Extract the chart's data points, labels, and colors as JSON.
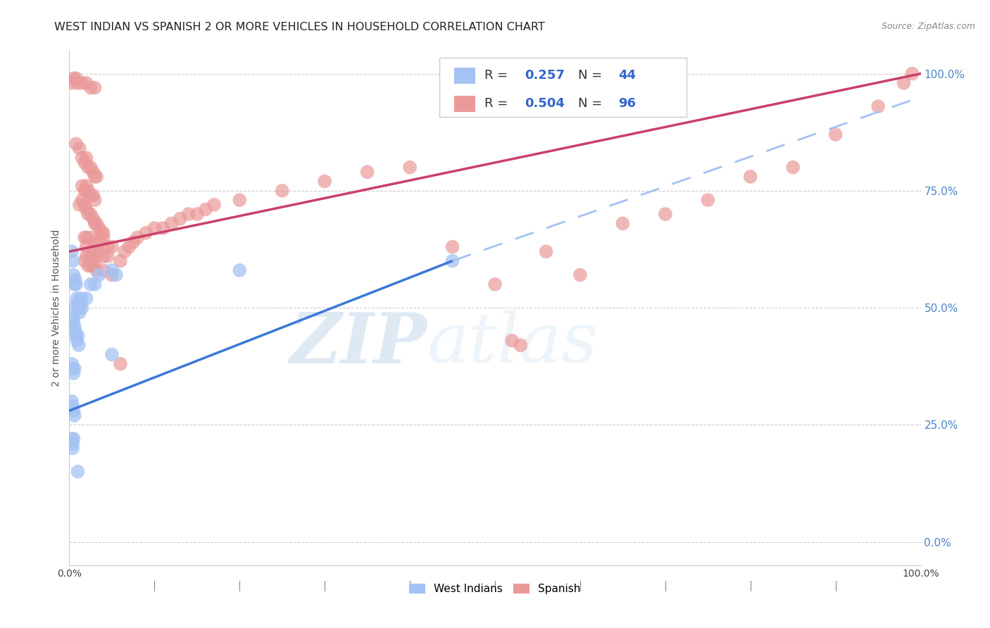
{
  "title": "WEST INDIAN VS SPANISH 2 OR MORE VEHICLES IN HOUSEHOLD CORRELATION CHART",
  "source": "Source: ZipAtlas.com",
  "ylabel_label": "2 or more Vehicles in Household",
  "watermark_zip": "ZIP",
  "watermark_atlas": "atlas",
  "blue_color": "#a4c2f4",
  "pink_color": "#ea9999",
  "blue_line_color": "#3c78d8",
  "pink_line_color": "#c9406a",
  "blue_dash_color": "#a4c2f4",
  "blue_scatter": [
    [
      0.003,
      0.62
    ],
    [
      0.004,
      0.6
    ],
    [
      0.005,
      0.57
    ],
    [
      0.006,
      0.55
    ],
    [
      0.007,
      0.56
    ],
    [
      0.008,
      0.55
    ],
    [
      0.009,
      0.52
    ],
    [
      0.01,
      0.51
    ],
    [
      0.011,
      0.5
    ],
    [
      0.012,
      0.49
    ],
    [
      0.013,
      0.51
    ],
    [
      0.014,
      0.52
    ],
    [
      0.015,
      0.5
    ],
    [
      0.003,
      0.5
    ],
    [
      0.004,
      0.48
    ],
    [
      0.005,
      0.47
    ],
    [
      0.006,
      0.46
    ],
    [
      0.007,
      0.45
    ],
    [
      0.008,
      0.44
    ],
    [
      0.009,
      0.43
    ],
    [
      0.01,
      0.44
    ],
    [
      0.011,
      0.42
    ],
    [
      0.003,
      0.38
    ],
    [
      0.004,
      0.37
    ],
    [
      0.005,
      0.36
    ],
    [
      0.006,
      0.37
    ],
    [
      0.003,
      0.3
    ],
    [
      0.004,
      0.29
    ],
    [
      0.005,
      0.28
    ],
    [
      0.006,
      0.27
    ],
    [
      0.003,
      0.22
    ],
    [
      0.004,
      0.21
    ],
    [
      0.005,
      0.22
    ],
    [
      0.004,
      0.2
    ],
    [
      0.02,
      0.52
    ],
    [
      0.025,
      0.55
    ],
    [
      0.03,
      0.55
    ],
    [
      0.035,
      0.57
    ],
    [
      0.05,
      0.58
    ],
    [
      0.055,
      0.57
    ],
    [
      0.2,
      0.58
    ],
    [
      0.45,
      0.6
    ],
    [
      0.01,
      0.15
    ],
    [
      0.05,
      0.4
    ]
  ],
  "pink_scatter": [
    [
      0.003,
      0.98
    ],
    [
      0.005,
      0.99
    ],
    [
      0.008,
      0.99
    ],
    [
      0.01,
      0.98
    ],
    [
      0.015,
      0.98
    ],
    [
      0.02,
      0.98
    ],
    [
      0.025,
      0.97
    ],
    [
      0.03,
      0.97
    ],
    [
      0.008,
      0.85
    ],
    [
      0.012,
      0.84
    ],
    [
      0.015,
      0.82
    ],
    [
      0.018,
      0.81
    ],
    [
      0.02,
      0.82
    ],
    [
      0.022,
      0.8
    ],
    [
      0.025,
      0.8
    ],
    [
      0.028,
      0.79
    ],
    [
      0.03,
      0.78
    ],
    [
      0.032,
      0.78
    ],
    [
      0.015,
      0.76
    ],
    [
      0.018,
      0.75
    ],
    [
      0.02,
      0.76
    ],
    [
      0.022,
      0.75
    ],
    [
      0.025,
      0.74
    ],
    [
      0.028,
      0.74
    ],
    [
      0.03,
      0.73
    ],
    [
      0.012,
      0.72
    ],
    [
      0.015,
      0.73
    ],
    [
      0.018,
      0.72
    ],
    [
      0.02,
      0.71
    ],
    [
      0.022,
      0.7
    ],
    [
      0.025,
      0.7
    ],
    [
      0.028,
      0.69
    ],
    [
      0.03,
      0.68
    ],
    [
      0.032,
      0.68
    ],
    [
      0.035,
      0.67
    ],
    [
      0.038,
      0.66
    ],
    [
      0.04,
      0.66
    ],
    [
      0.018,
      0.65
    ],
    [
      0.02,
      0.65
    ],
    [
      0.025,
      0.65
    ],
    [
      0.03,
      0.64
    ],
    [
      0.035,
      0.64
    ],
    [
      0.04,
      0.65
    ],
    [
      0.045,
      0.63
    ],
    [
      0.05,
      0.63
    ],
    [
      0.02,
      0.63
    ],
    [
      0.025,
      0.62
    ],
    [
      0.03,
      0.62
    ],
    [
      0.035,
      0.62
    ],
    [
      0.04,
      0.61
    ],
    [
      0.045,
      0.61
    ],
    [
      0.02,
      0.61
    ],
    [
      0.025,
      0.6
    ],
    [
      0.03,
      0.6
    ],
    [
      0.018,
      0.6
    ],
    [
      0.022,
      0.59
    ],
    [
      0.025,
      0.59
    ],
    [
      0.028,
      0.59
    ],
    [
      0.032,
      0.58
    ],
    [
      0.04,
      0.58
    ],
    [
      0.05,
      0.57
    ],
    [
      0.06,
      0.6
    ],
    [
      0.065,
      0.62
    ],
    [
      0.07,
      0.63
    ],
    [
      0.075,
      0.64
    ],
    [
      0.08,
      0.65
    ],
    [
      0.09,
      0.66
    ],
    [
      0.1,
      0.67
    ],
    [
      0.11,
      0.67
    ],
    [
      0.12,
      0.68
    ],
    [
      0.13,
      0.69
    ],
    [
      0.14,
      0.7
    ],
    [
      0.15,
      0.7
    ],
    [
      0.16,
      0.71
    ],
    [
      0.17,
      0.72
    ],
    [
      0.2,
      0.73
    ],
    [
      0.25,
      0.75
    ],
    [
      0.3,
      0.77
    ],
    [
      0.35,
      0.79
    ],
    [
      0.4,
      0.8
    ],
    [
      0.45,
      0.63
    ],
    [
      0.5,
      0.55
    ],
    [
      0.52,
      0.43
    ],
    [
      0.53,
      0.42
    ],
    [
      0.56,
      0.62
    ],
    [
      0.6,
      0.57
    ],
    [
      0.65,
      0.68
    ],
    [
      0.7,
      0.7
    ],
    [
      0.75,
      0.73
    ],
    [
      0.8,
      0.78
    ],
    [
      0.85,
      0.8
    ],
    [
      0.9,
      0.87
    ],
    [
      0.95,
      0.93
    ],
    [
      0.98,
      0.98
    ],
    [
      0.99,
      1.0
    ],
    [
      0.06,
      0.38
    ]
  ],
  "blue_line": {
    "x0": 0.0,
    "y0": 0.28,
    "x1": 0.45,
    "y1": 0.6
  },
  "blue_dash_line": {
    "x0": 0.45,
    "y0": 0.6,
    "x1": 1.0,
    "y1": 0.95
  },
  "pink_line": {
    "x0": 0.0,
    "y0": 0.62,
    "x1": 1.0,
    "y1": 1.0
  },
  "xlim": [
    -0.01,
    1.01
  ],
  "ylim": [
    0.0,
    1.05
  ],
  "plot_xlim": [
    0.0,
    1.0
  ],
  "plot_ylim": [
    -0.05,
    1.05
  ],
  "background_color": "#ffffff",
  "grid_color": "#e0e0e0",
  "title_fontsize": 11.5,
  "source_fontsize": 9,
  "tick_color": "#4a86c8"
}
